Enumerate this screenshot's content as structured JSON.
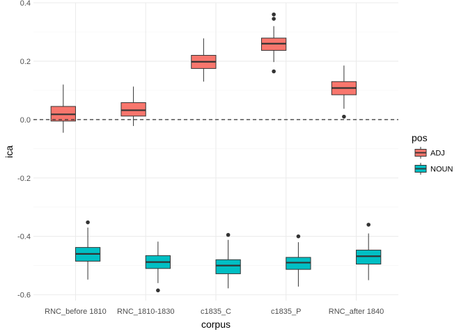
{
  "chart_data": {
    "type": "boxplot",
    "xlabel": "corpus",
    "ylabel": "ica",
    "ylim": [
      -0.62,
      0.4
    ],
    "yticks": [
      -0.6,
      -0.4,
      -0.2,
      0.0,
      0.2,
      0.4
    ],
    "ytick_labels": [
      "-0.6",
      "-0.4",
      "-0.2",
      "0.0",
      "0.2",
      "0.4"
    ],
    "reference_line": {
      "y": 0.0,
      "style": "dashed"
    },
    "categories": [
      "RNC_before 1810",
      "RNC_1810-1830",
      "c1835_C",
      "c1835_P",
      "RNC_after 1840"
    ],
    "legend": {
      "title": "pos",
      "placement": "right"
    },
    "series": [
      {
        "name": "ADJ",
        "color": "#F8766D",
        "boxes": [
          {
            "whisker_low": -0.045,
            "q1": -0.005,
            "median": 0.018,
            "q3": 0.045,
            "whisker_high": 0.12,
            "outliers": []
          },
          {
            "whisker_low": -0.022,
            "q1": 0.012,
            "median": 0.032,
            "q3": 0.058,
            "whisker_high": 0.113,
            "outliers": []
          },
          {
            "whisker_low": 0.13,
            "q1": 0.175,
            "median": 0.198,
            "q3": 0.22,
            "whisker_high": 0.278,
            "outliers": []
          },
          {
            "whisker_low": 0.197,
            "q1": 0.237,
            "median": 0.26,
            "q3": 0.279,
            "whisker_high": 0.32,
            "outliers": [
              0.36,
              0.345,
              0.165
            ]
          },
          {
            "whisker_low": 0.037,
            "q1": 0.085,
            "median": 0.108,
            "q3": 0.13,
            "whisker_high": 0.185,
            "outliers": [
              0.01
            ]
          }
        ]
      },
      {
        "name": "NOUN",
        "color": "#00BFC4",
        "boxes": [
          {
            "whisker_low": -0.548,
            "q1": -0.485,
            "median": -0.46,
            "q3": -0.438,
            "whisker_high": -0.37,
            "outliers": [
              -0.352
            ]
          },
          {
            "whisker_low": -0.56,
            "q1": -0.51,
            "median": -0.488,
            "q3": -0.466,
            "whisker_high": -0.418,
            "outliers": [
              -0.585
            ]
          },
          {
            "whisker_low": -0.578,
            "q1": -0.528,
            "median": -0.5,
            "q3": -0.48,
            "whisker_high": -0.412,
            "outliers": [
              -0.395
            ]
          },
          {
            "whisker_low": -0.572,
            "q1": -0.513,
            "median": -0.49,
            "q3": -0.472,
            "whisker_high": -0.42,
            "outliers": [
              -0.4
            ]
          },
          {
            "whisker_low": -0.55,
            "q1": -0.495,
            "median": -0.468,
            "q3": -0.447,
            "whisker_high": -0.39,
            "outliers": [
              -0.36
            ]
          }
        ]
      }
    ]
  }
}
